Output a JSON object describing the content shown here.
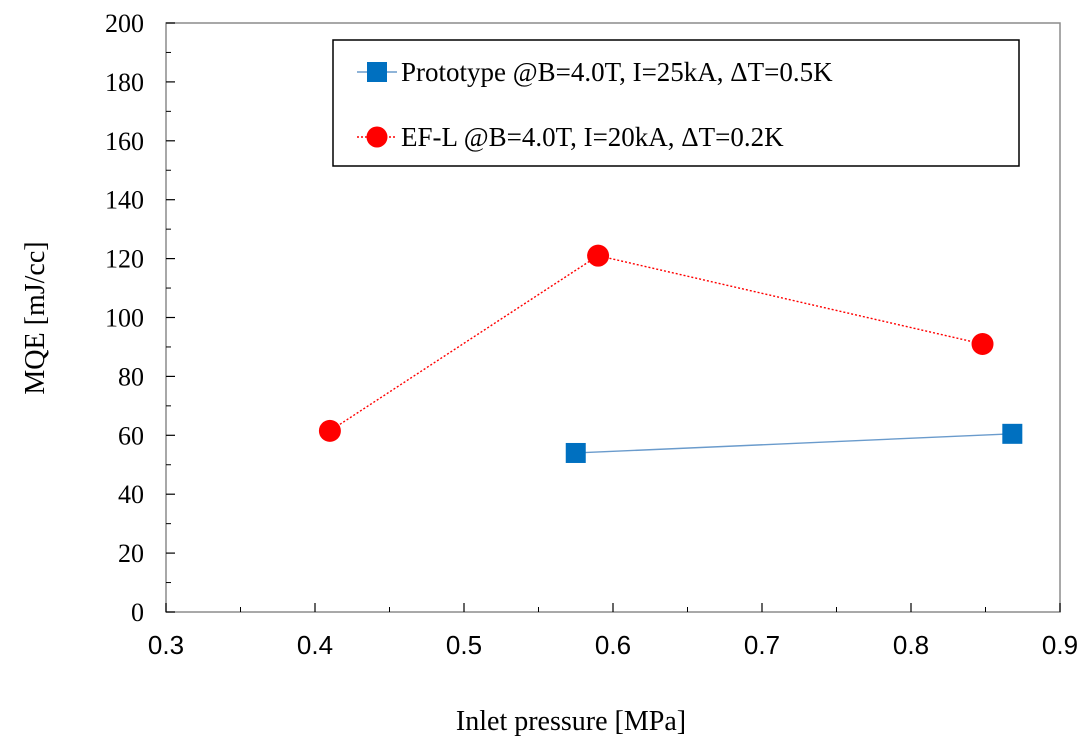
{
  "chart_data": {
    "type": "line",
    "title": "",
    "xlabel": "Inlet pressure [MPa]",
    "ylabel": "MQE [mJ/cc]",
    "xlim": [
      0.3,
      0.9
    ],
    "ylim": [
      0,
      200
    ],
    "x_ticks": [
      0.3,
      0.4,
      0.5,
      0.6,
      0.7,
      0.8,
      0.9
    ],
    "x_tick_labels": [
      "0.3",
      "0.4",
      "0.5",
      "0.6",
      "0.7",
      "0.8",
      "0.9"
    ],
    "y_ticks": [
      0,
      20,
      40,
      60,
      80,
      100,
      120,
      140,
      160,
      180,
      200
    ],
    "y_tick_labels": [
      "0",
      "20",
      "40",
      "60",
      "80",
      "100",
      "120",
      "140",
      "160",
      "180",
      "200"
    ],
    "grid": false,
    "legend_position": "top-right",
    "series": [
      {
        "name": "Prototype @B=4.0T, I=25kA, ΔT=0.5K",
        "marker": "square",
        "line_style": "solid",
        "color": "#0070C0",
        "line_color": "#6A9BCC",
        "points": [
          {
            "x": 0.575,
            "y": 54
          },
          {
            "x": 0.868,
            "y": 60.5
          }
        ]
      },
      {
        "name": "EF-L @B=4.0T, I=20kA, ΔT=0.2K",
        "marker": "circle",
        "line_style": "dotted",
        "color": "#FF0000",
        "line_color": "#FF0000",
        "points": [
          {
            "x": 0.41,
            "y": 61.5
          },
          {
            "x": 0.59,
            "y": 121
          },
          {
            "x": 0.848,
            "y": 91
          }
        ]
      }
    ]
  }
}
